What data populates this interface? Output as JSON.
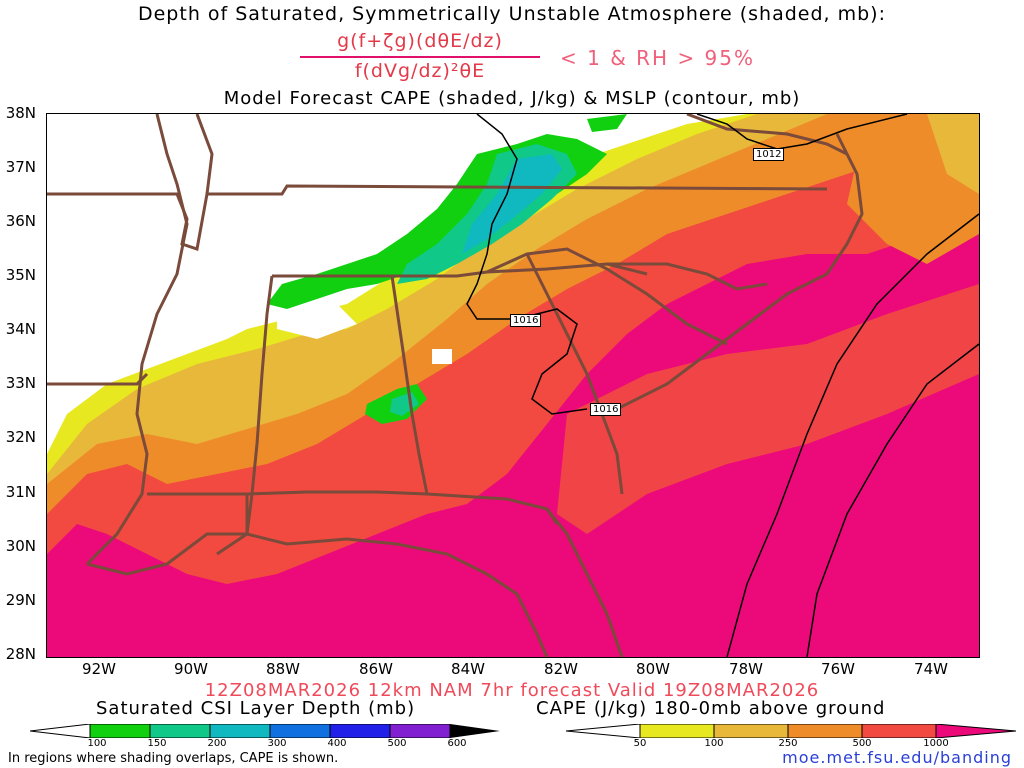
{
  "header": {
    "title": "Depth of Saturated, Symmetrically Unstable Atmosphere (shaded, mb):",
    "formula_numerator": "g(f+ζg)(dθE/dz)",
    "formula_denominator": "f(dVg/dz)²θE",
    "condition": "< 1 & RH > 95%",
    "subtitle": "Model Forecast CAPE (shaded, J/kg) & MSLP (contour, mb)"
  },
  "map": {
    "lat_labels": [
      "38N",
      "37N",
      "36N",
      "35N",
      "34N",
      "33N",
      "32N",
      "31N",
      "30N",
      "29N",
      "28N"
    ],
    "lon_labels": [
      "92W",
      "90W",
      "88W",
      "86W",
      "84W",
      "82W",
      "80W",
      "78W",
      "76W",
      "74W"
    ],
    "isobar_labels": [
      "1012",
      "1016",
      "1016"
    ],
    "colors": {
      "cape_50": "#e8e820",
      "cape_100": "#e8b83a",
      "cape_250": "#ef8c2a",
      "cape_500": "#f24a40",
      "cape_1000": "#ec0a7a",
      "csi_100": "#10d010",
      "csi_150": "#10c888",
      "csi_200": "#10b8c0",
      "state_border": "#7a4a3a"
    }
  },
  "valid_text": "12Z08MAR2026 12km NAM 7hr forecast Valid 19Z08MAR2026",
  "colorbar_left": {
    "title": "Saturated CSI Layer Depth (mb)",
    "labels": [
      "100",
      "150",
      "200",
      "300",
      "400",
      "500",
      "600"
    ]
  },
  "colorbar_right": {
    "title": "CAPE (J/kg) 180-0mb above ground",
    "labels": [
      "50",
      "100",
      "250",
      "500",
      "1000"
    ]
  },
  "footer": {
    "note": "In regions where shading overlaps, CAPE is shown.",
    "url": "moe.met.fsu.edu/banding"
  }
}
